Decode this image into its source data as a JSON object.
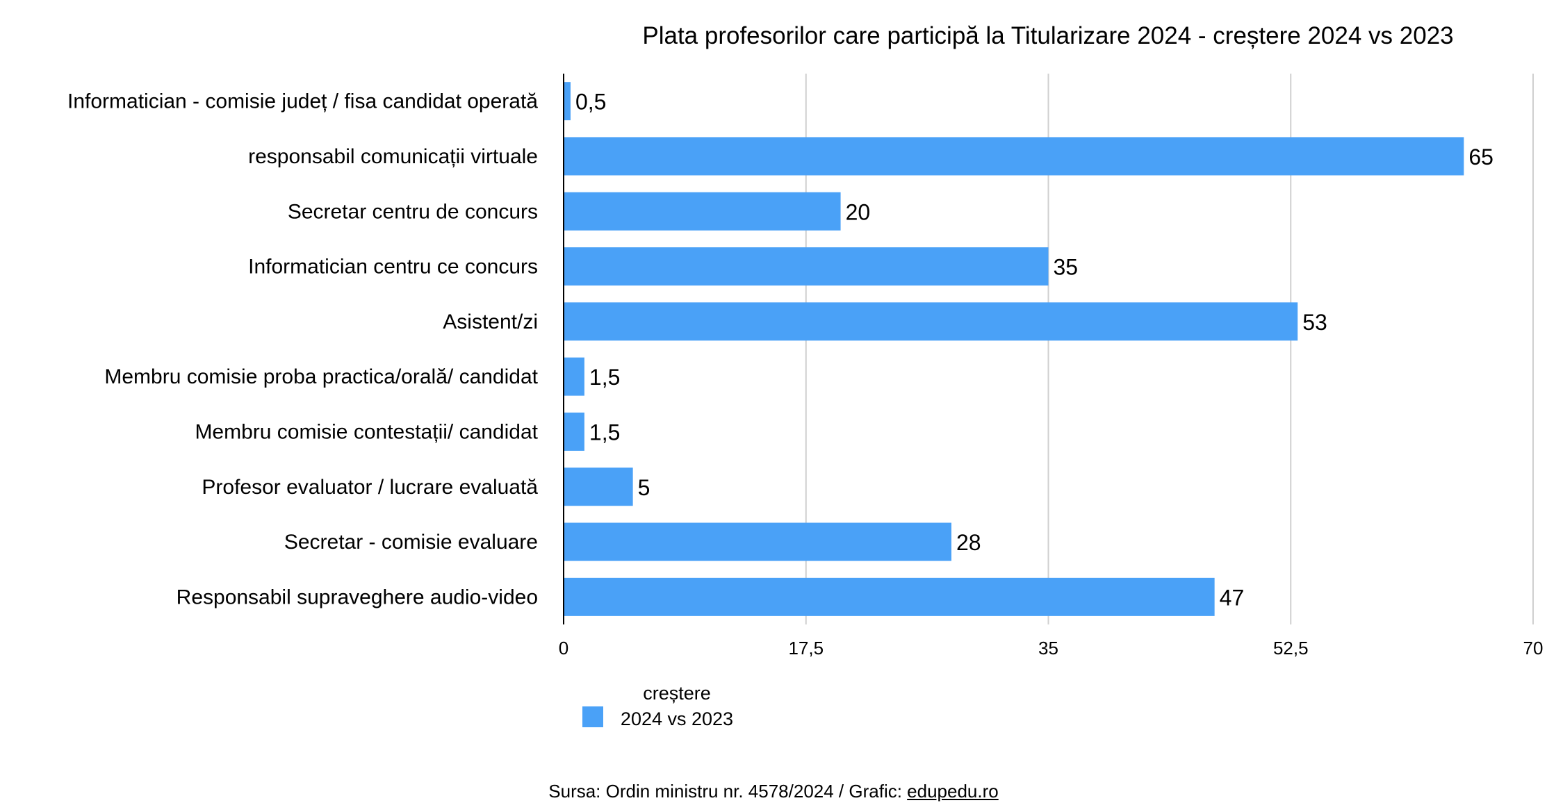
{
  "chart_data": {
    "type": "bar",
    "orientation": "horizontal",
    "title": "Plata profesorilor care participă la Titularizare 2024 - creștere 2024 vs 2023",
    "categories": [
      "Informatician - comisie județ / fisa candidat operată",
      "responsabil comunicații virtuale",
      "Secretar centru de concurs",
      "Informatician centru ce concurs",
      "Asistent/zi",
      "Membru comisie proba practica/orală/ candidat",
      "Membru comisie contestații/ candidat",
      "Profesor evaluator / lucrare evaluată",
      "Secretar - comisie evaluare",
      "Responsabil supraveghere audio-video"
    ],
    "series": [
      {
        "name": "creștere 2024 vs 2023",
        "values": [
          0.5,
          65,
          20,
          35,
          53,
          1.5,
          1.5,
          5,
          28,
          47
        ],
        "data_labels": [
          "0,5",
          "65",
          "20",
          "35",
          "53",
          "1,5",
          "1,5",
          "5",
          "28",
          "47"
        ],
        "color": "#4aa1f7"
      }
    ],
    "xlim": [
      0,
      70
    ],
    "xticks": [
      0,
      17.5,
      35,
      52.5,
      70
    ],
    "xtick_labels": [
      "0",
      "17,5",
      "35",
      "52,5",
      "70"
    ],
    "xlabel": "",
    "ylabel": "",
    "grid": true,
    "legend": {
      "position": "bottom-left",
      "line1": "creștere",
      "line2": "2024 vs 2023"
    }
  },
  "source": {
    "prefix": "Sursa: Ordin ministru nr. 4578/2024 / Grafic: ",
    "link": "edupedu.ro"
  },
  "colors": {
    "bar": "#4aa1f7",
    "grid": "#cfcfcf",
    "axis": "#000000"
  }
}
